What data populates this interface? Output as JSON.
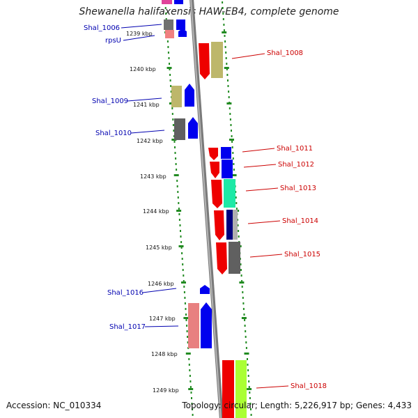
{
  "title": "Shewanella halifaxensis HAW-EB4, complete genome",
  "footer": {
    "accession": "Accession: NC_010334",
    "topology": "Topology: circular; Length: 5,226,917 bp; Genes: 4,433"
  },
  "kbp_ticks": [
    {
      "kbp": 1239,
      "label": "1239 kbp"
    },
    {
      "kbp": 1240,
      "label": "1240 kbp"
    },
    {
      "kbp": 1241,
      "label": "1241 kbp"
    },
    {
      "kbp": 1242,
      "label": "1242 kbp"
    },
    {
      "kbp": 1243,
      "label": "1243 kbp"
    },
    {
      "kbp": 1244,
      "label": "1244 kbp"
    },
    {
      "kbp": 1245,
      "label": "1245 kbp"
    },
    {
      "kbp": 1246,
      "label": "1246 kbp"
    },
    {
      "kbp": 1247,
      "label": "1247 kbp"
    },
    {
      "kbp": 1248,
      "label": "1248 kbp"
    },
    {
      "kbp": 1249,
      "label": "1249 kbp"
    }
  ],
  "gene_labels": [
    {
      "id": "shal-1006",
      "text": "Shal_1006",
      "color": "#0000b0"
    },
    {
      "id": "rpsu",
      "text": "rpsU",
      "color": "#0000b0"
    },
    {
      "id": "shal-1008",
      "text": "Shal_1008",
      "color": "#cc0000"
    },
    {
      "id": "shal-1009",
      "text": "Shal_1009",
      "color": "#0000b0"
    },
    {
      "id": "shal-1010",
      "text": "Shal_1010",
      "color": "#0000b0"
    },
    {
      "id": "shal-1011",
      "text": "Shal_1011",
      "color": "#cc0000"
    },
    {
      "id": "shal-1012",
      "text": "Shal_1012",
      "color": "#cc0000"
    },
    {
      "id": "shal-1013",
      "text": "Shal_1013",
      "color": "#cc0000"
    },
    {
      "id": "shal-1014",
      "text": "Shal_1014",
      "color": "#cc0000"
    },
    {
      "id": "shal-1015",
      "text": "Shal_1015",
      "color": "#cc0000"
    },
    {
      "id": "shal-1016",
      "text": "Shal_1016",
      "color": "#0000b0"
    },
    {
      "id": "shal-1017",
      "text": "Shal_1017",
      "color": "#0000b0"
    },
    {
      "id": "shal-1018",
      "text": "Shal_1018",
      "color": "#cc0000"
    }
  ],
  "colors": {
    "backbone": "#888888",
    "tick_marks": "#228b22",
    "forward_strand": "#cc0000",
    "reverse_strand": "#0000b0"
  }
}
